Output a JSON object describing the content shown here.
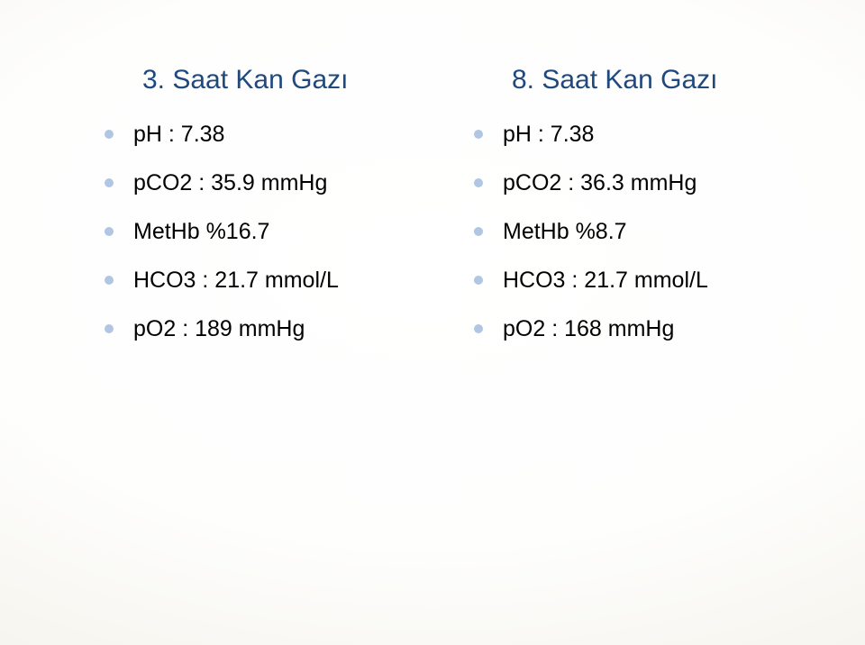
{
  "slide": {
    "background_gradient": [
      "#ffffff",
      "#fefefd",
      "#f5f3ec",
      "#e8e5d8"
    ],
    "title_color": "#1f497d",
    "bullet_color": "#b0c6e2",
    "text_color": "#000000",
    "title_fontsize": 30,
    "item_fontsize": 25
  },
  "left": {
    "title": "3. Saat Kan Gazı",
    "items": [
      "pH : 7.38",
      "pCO2 : 35.9 mmHg",
      "MetHb %16.7",
      "HCO3 : 21.7 mmol/L",
      "pO2 : 189 mmHg"
    ]
  },
  "right": {
    "title": "8. Saat Kan Gazı",
    "items": [
      "pH : 7.38",
      "pCO2 : 36.3 mmHg",
      "MetHb %8.7",
      "HCO3 : 21.7 mmol/L",
      "pO2 : 168 mmHg"
    ]
  }
}
